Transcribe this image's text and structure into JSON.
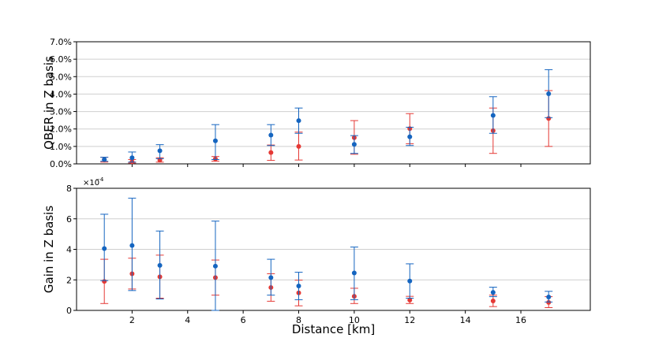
{
  "chart_data": [
    {
      "type": "scatter",
      "title": "",
      "xlabel": "",
      "ylabel": "QBER in Z basis",
      "xlim": [
        0,
        18.5
      ],
      "ylim": [
        0,
        7
      ],
      "y_unit": "%",
      "yticks": [
        "0.0%",
        "1.0%",
        "2.0%",
        "3.0%",
        "4.0%",
        "5.0%",
        "6.0%",
        "7.0%"
      ],
      "grid": "horizontal",
      "series": [
        {
          "color": "#1565c0",
          "points": [
            {
              "x": 1,
              "y": 0.25,
              "lo": 0.15,
              "hi": 0.38
            },
            {
              "x": 2,
              "y": 0.35,
              "lo": 0.1,
              "hi": 0.68
            },
            {
              "x": 3,
              "y": 0.75,
              "lo": 0.3,
              "hi": 1.1
            },
            {
              "x": 5,
              "y": 1.32,
              "lo": 0.25,
              "hi": 2.25
            },
            {
              "x": 7,
              "y": 1.65,
              "lo": 1.05,
              "hi": 2.25
            },
            {
              "x": 8,
              "y": 2.48,
              "lo": 1.75,
              "hi": 3.2
            },
            {
              "x": 10,
              "y": 1.12,
              "lo": 0.6,
              "hi": 1.62
            },
            {
              "x": 12,
              "y": 1.55,
              "lo": 1.05,
              "hi": 2.1
            },
            {
              "x": 15,
              "y": 2.78,
              "lo": 1.75,
              "hi": 3.85
            },
            {
              "x": 17,
              "y": 4.02,
              "lo": 2.65,
              "hi": 5.4
            }
          ]
        },
        {
          "color": "#e53935",
          "points": [
            {
              "x": 1,
              "y": 0.25,
              "lo": 0.1,
              "hi": 0.38
            },
            {
              "x": 2,
              "y": 0.12,
              "lo": 0.05,
              "hi": 0.25
            },
            {
              "x": 3,
              "y": 0.22,
              "lo": 0.1,
              "hi": 0.35
            },
            {
              "x": 5,
              "y": 0.28,
              "lo": 0.15,
              "hi": 0.42
            },
            {
              "x": 7,
              "y": 0.65,
              "lo": 0.2,
              "hi": 1.08
            },
            {
              "x": 8,
              "y": 1.0,
              "lo": 0.22,
              "hi": 1.82
            },
            {
              "x": 10,
              "y": 1.5,
              "lo": 0.55,
              "hi": 2.48
            },
            {
              "x": 12,
              "y": 2.02,
              "lo": 1.15,
              "hi": 2.88
            },
            {
              "x": 15,
              "y": 1.9,
              "lo": 0.6,
              "hi": 3.2
            },
            {
              "x": 17,
              "y": 2.6,
              "lo": 1.0,
              "hi": 4.2
            }
          ]
        }
      ]
    },
    {
      "type": "scatter",
      "title": "",
      "xlabel": "Distance [km]",
      "ylabel": "Gain in Z basis",
      "xlim": [
        0,
        18.5
      ],
      "ylim": [
        0,
        8
      ],
      "xticks": [
        "2",
        "4",
        "6",
        "8",
        "10",
        "12",
        "14",
        "16"
      ],
      "yticks": [
        "0",
        "2",
        "4",
        "6",
        "8"
      ],
      "scale_base": "×10",
      "scale_exponent": "−4",
      "grid": "horizontal",
      "series": [
        {
          "color": "#1565c0",
          "points": [
            {
              "x": 1,
              "y": 4.05,
              "lo": 1.95,
              "hi": 6.3
            },
            {
              "x": 2,
              "y": 4.25,
              "lo": 1.3,
              "hi": 7.35
            },
            {
              "x": 3,
              "y": 2.95,
              "lo": 0.75,
              "hi": 5.2
            },
            {
              "x": 5,
              "y": 2.9,
              "lo": 0.0,
              "hi": 5.85
            },
            {
              "x": 7,
              "y": 2.15,
              "lo": 1.0,
              "hi": 3.35
            },
            {
              "x": 8,
              "y": 1.6,
              "lo": 0.7,
              "hi": 2.5
            },
            {
              "x": 10,
              "y": 2.45,
              "lo": 0.7,
              "hi": 4.15
            },
            {
              "x": 12,
              "y": 1.92,
              "lo": 0.8,
              "hi": 3.05
            },
            {
              "x": 15,
              "y": 1.18,
              "lo": 0.9,
              "hi": 1.52
            },
            {
              "x": 17,
              "y": 0.88,
              "lo": 0.55,
              "hi": 1.25
            }
          ]
        },
        {
          "color": "#e53935",
          "points": [
            {
              "x": 1,
              "y": 1.9,
              "lo": 0.45,
              "hi": 3.35
            },
            {
              "x": 2,
              "y": 2.4,
              "lo": 1.4,
              "hi": 3.42
            },
            {
              "x": 3,
              "y": 2.2,
              "lo": 0.8,
              "hi": 3.62
            },
            {
              "x": 5,
              "y": 2.15,
              "lo": 1.0,
              "hi": 3.3
            },
            {
              "x": 7,
              "y": 1.5,
              "lo": 0.6,
              "hi": 2.4
            },
            {
              "x": 8,
              "y": 1.15,
              "lo": 0.3,
              "hi": 1.98
            },
            {
              "x": 10,
              "y": 0.92,
              "lo": 0.45,
              "hi": 1.45
            },
            {
              "x": 12,
              "y": 0.68,
              "lo": 0.45,
              "hi": 0.92
            },
            {
              "x": 15,
              "y": 0.62,
              "lo": 0.25,
              "hi": 1.0
            },
            {
              "x": 17,
              "y": 0.52,
              "lo": 0.18,
              "hi": 0.9
            }
          ]
        }
      ]
    }
  ]
}
